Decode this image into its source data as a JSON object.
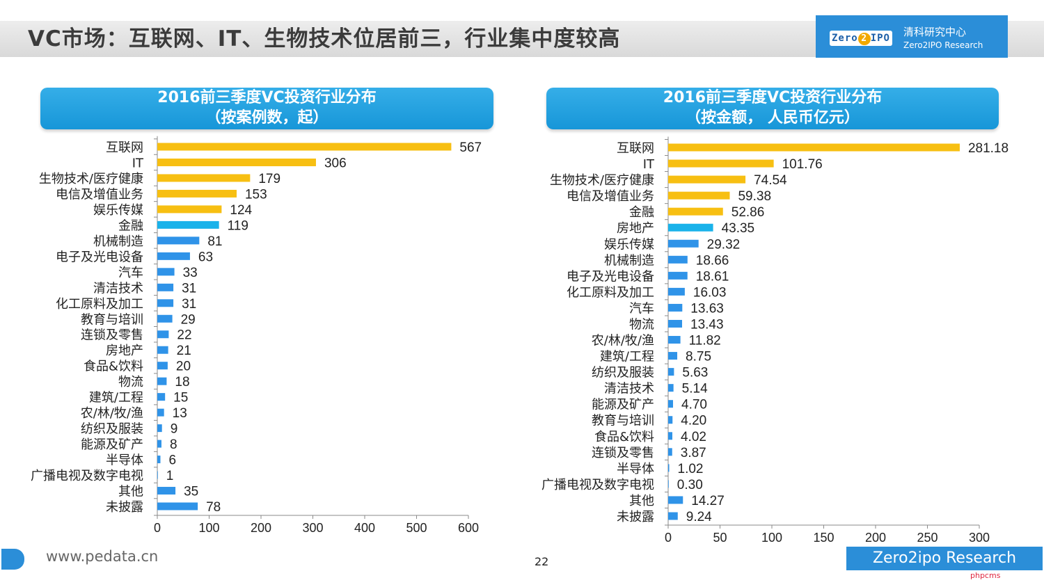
{
  "page": {
    "title": "VC市场：互联网、IT、生物技术位居前三，行业集中度较高",
    "logo_mark": "Zero",
    "logo_mark_two": "2",
    "logo_mark_tail": "IPO",
    "logo_cn": "清科研究中心",
    "logo_en": "Zero2IPO Research",
    "footer_url": "www.pedata.cn",
    "page_number": "22",
    "footer_brand": "Zero2ipo Research",
    "watermark": "phpcms"
  },
  "colors": {
    "top_bar": "#f7bf12",
    "highlight_bar": "#19b2ea",
    "regular_bar": "#2f93e8",
    "header_blue": "#1796d8",
    "brand_blue": "#2b8ed8"
  },
  "chart_data": [
    {
      "type": "bar",
      "orientation": "horizontal",
      "title": "2016前三季度VC投资行业分布",
      "subtitle": "（按案例数，起）",
      "categories": [
        "互联网",
        "IT",
        "生物技术/医疗健康",
        "电信及增值业务",
        "娱乐传媒",
        "金融",
        "机械制造",
        "电子及光电设备",
        "汽车",
        "清洁技术",
        "化工原料及加工",
        "教育与培训",
        "连锁及零售",
        "房地产",
        "食品&饮料",
        "物流",
        "建筑/工程",
        "农/林/牧/渔",
        "纺织及服装",
        "能源及矿产",
        "半导体",
        "广播电视及数字电视",
        "其他",
        "未披露"
      ],
      "values": [
        567,
        306,
        179,
        153,
        124,
        119,
        81,
        63,
        33,
        31,
        31,
        29,
        22,
        21,
        20,
        18,
        15,
        13,
        9,
        8,
        6,
        1,
        35,
        78
      ],
      "value_labels": [
        "567",
        "306",
        "179",
        "153",
        "124",
        "119",
        "81",
        "63",
        "33",
        "31",
        "31",
        "29",
        "22",
        "21",
        "20",
        "18",
        "15",
        "13",
        "9",
        "8",
        "6",
        "1",
        "35",
        "78"
      ],
      "bar_color_groups": [
        "top",
        "top",
        "top",
        "top",
        "top",
        "highlight",
        "regular",
        "regular",
        "regular",
        "regular",
        "regular",
        "regular",
        "regular",
        "regular",
        "regular",
        "regular",
        "regular",
        "regular",
        "regular",
        "regular",
        "regular",
        "regular",
        "regular",
        "regular"
      ],
      "xlim": [
        0,
        600
      ],
      "xticks": [
        0,
        100,
        200,
        300,
        400,
        500,
        600
      ],
      "grid": false,
      "legend": "none"
    },
    {
      "type": "bar",
      "orientation": "horizontal",
      "title": "2016前三季度VC投资行业分布",
      "subtitle": "（按金额， 人民币亿元）",
      "categories": [
        "互联网",
        "IT",
        "生物技术/医疗健康",
        "电信及增值业务",
        "金融",
        "房地产",
        "娱乐传媒",
        "机械制造",
        "电子及光电设备",
        "化工原料及加工",
        "汽车",
        "物流",
        "农/林/牧/渔",
        "建筑/工程",
        "纺织及服装",
        "清洁技术",
        "能源及矿产",
        "教育与培训",
        "食品&饮料",
        "连锁及零售",
        "半导体",
        "广播电视及数字电视",
        "其他",
        "未披露"
      ],
      "values": [
        281.18,
        101.76,
        74.54,
        59.38,
        52.86,
        43.35,
        29.32,
        18.66,
        18.61,
        16.03,
        13.63,
        13.43,
        11.82,
        8.75,
        5.63,
        5.14,
        4.7,
        4.2,
        4.02,
        3.87,
        1.02,
        0.3,
        14.27,
        9.24
      ],
      "value_labels": [
        "281.18",
        "101.76",
        "74.54",
        "59.38",
        "52.86",
        "43.35",
        "29.32",
        "18.66",
        "18.61",
        "16.03",
        "13.63",
        "13.43",
        "11.82",
        "8.75",
        "5.63",
        "5.14",
        "4.70",
        "4.20",
        "4.02",
        "3.87",
        "1.02",
        "0.30",
        "14.27",
        "9.24"
      ],
      "bar_color_groups": [
        "top",
        "top",
        "top",
        "top",
        "top",
        "highlight",
        "regular",
        "regular",
        "regular",
        "regular",
        "regular",
        "regular",
        "regular",
        "regular",
        "regular",
        "regular",
        "regular",
        "regular",
        "regular",
        "regular",
        "regular",
        "regular",
        "regular",
        "regular"
      ],
      "xlim": [
        0,
        300
      ],
      "xticks": [
        0,
        50,
        100,
        150,
        200,
        250,
        300
      ],
      "grid": false,
      "legend": "none"
    }
  ]
}
